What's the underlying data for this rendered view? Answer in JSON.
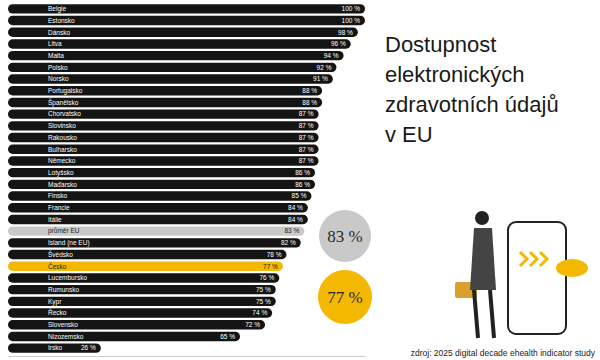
{
  "chart_data": {
    "type": "bar",
    "orientation": "horizontal",
    "title": "Dostupnost elektronických zdravotních údajů v EU",
    "source": "zdroj: 2025 digital decade ehealth indicator study",
    "categories": [
      "Belgie",
      "Estonsko",
      "Dánsko",
      "Litva",
      "Malta",
      "Polsko",
      "Norsko",
      "Portugalsko",
      "Španělsko",
      "Chorvatsko",
      "Slovinsko",
      "Rakousko",
      "Bulharsko",
      "Německo",
      "Lotyšsko",
      "Maďarsko",
      "Finsko",
      "Francie",
      "Itálie",
      "průměr EU",
      "Island (ne EU)",
      "Švédsko",
      "Česko",
      "Lucembursko",
      "Rumunsko",
      "Kypr",
      "Řecko",
      "Slovensko",
      "Nizozemsko",
      "Irsko"
    ],
    "values": [
      100,
      100,
      98,
      96,
      94,
      92,
      91,
      88,
      88,
      87,
      87,
      87,
      87,
      87,
      86,
      86,
      85,
      84,
      84,
      83,
      82,
      78,
      77,
      76,
      75,
      75,
      74,
      72,
      65,
      26
    ],
    "value_labels": [
      "100 %",
      "100 %",
      "98 %",
      "96 %",
      "94 %",
      "92 %",
      "91 %",
      "88 %",
      "88 %",
      "87 %",
      "87 %",
      "87 %",
      "87 %",
      "87 %",
      "86 %",
      "86 %",
      "85 %",
      "84 %",
      "84 %",
      "83 %",
      "82 %",
      "78 %",
      "77 %",
      "76 %",
      "75 %",
      "75 %",
      "74 %",
      "72 %",
      "65 %",
      "26 %"
    ],
    "colors": [
      "#141414",
      "#141414",
      "#141414",
      "#141414",
      "#141414",
      "#141414",
      "#141414",
      "#141414",
      "#141414",
      "#141414",
      "#141414",
      "#141414",
      "#141414",
      "#141414",
      "#141414",
      "#141414",
      "#141414",
      "#141414",
      "#141414",
      "#c9c9c9",
      "#141414",
      "#141414",
      "#f5b800",
      "#141414",
      "#141414",
      "#141414",
      "#141414",
      "#141414",
      "#141414",
      "#141414"
    ],
    "xlim": [
      0,
      100
    ],
    "data_labels": true,
    "tick_labels": false,
    "grid": false,
    "annotations": [
      {
        "text": "83 %",
        "color": "#c9c9c9"
      },
      {
        "text": "77 %",
        "color": "#f5b800"
      }
    ]
  }
}
